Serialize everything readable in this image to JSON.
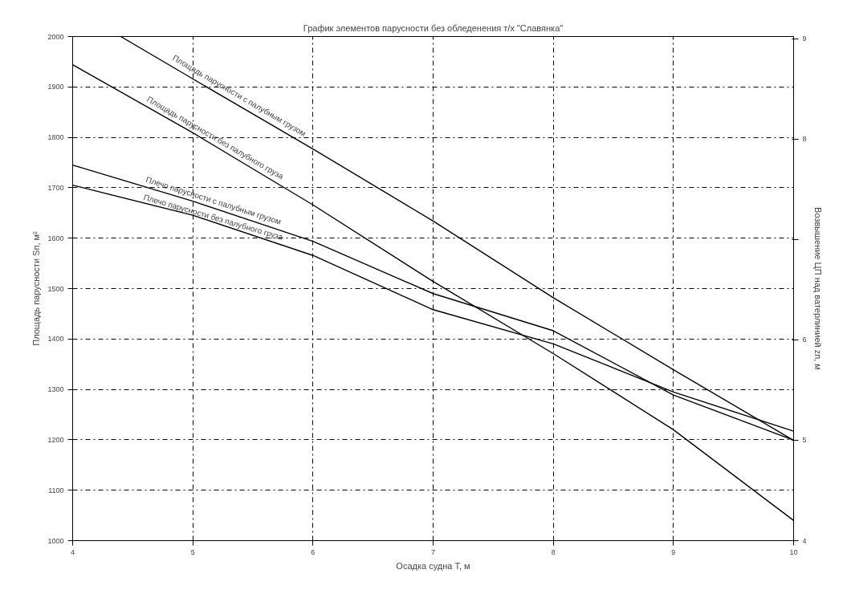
{
  "chart_data": {
    "type": "line",
    "title": "График элементов парусности без обледенения т/х \"Славянка\"",
    "xlabel": "Осадка судна Т, м",
    "ylabel": "Площадь парусности Sп, м²",
    "y2label": "Возвышение ЦП над ватерлинией zп, м",
    "xlim": [
      4,
      10
    ],
    "xticks": [
      4,
      5,
      6,
      7,
      8,
      9,
      10
    ],
    "ylim": [
      1000,
      2000
    ],
    "yticks": [
      1000,
      1100,
      1200,
      1300,
      1400,
      1500,
      1600,
      1700,
      1800,
      1900,
      2000
    ],
    "y2lim": [
      4,
      9.02
    ],
    "y2ticks": [
      4,
      5,
      6,
      {
        "value": 7,
        "label": null
      },
      8,
      9
    ],
    "grid": true,
    "marker": "none",
    "line_style": "solid",
    "series": [
      {
        "name": "Площадь парусности с палубным грузом",
        "color": "#000000",
        "x": [
          4.4,
          5,
          6,
          7,
          8,
          9,
          10
        ],
        "values": [
          2000,
          1916,
          1777,
          1634,
          1482,
          1339,
          1199
        ]
      },
      {
        "name": "Площадь парусности без палубного груза",
        "color": "#000000",
        "x": [
          4,
          5,
          6,
          7,
          8,
          9,
          10
        ],
        "values": [
          1944,
          1809,
          1666,
          1514,
          1371,
          1220,
          1040
        ]
      },
      {
        "name": "Плечо парусности с палубным грузом",
        "color": "#000000",
        "axis": "y2",
        "x": [
          4,
          5,
          6,
          7,
          8,
          9,
          10
        ],
        "values": [
          7.74,
          7.38,
          6.98,
          6.46,
          6.09,
          5.45,
          5.0
        ]
      },
      {
        "name": "Плечо парусности без палубного груза",
        "color": "#000000",
        "axis": "y2",
        "x": [
          4,
          5,
          6,
          7,
          8,
          9,
          10
        ],
        "values": [
          7.54,
          7.24,
          6.84,
          6.3,
          5.96,
          5.48,
          5.09
        ]
      }
    ]
  }
}
